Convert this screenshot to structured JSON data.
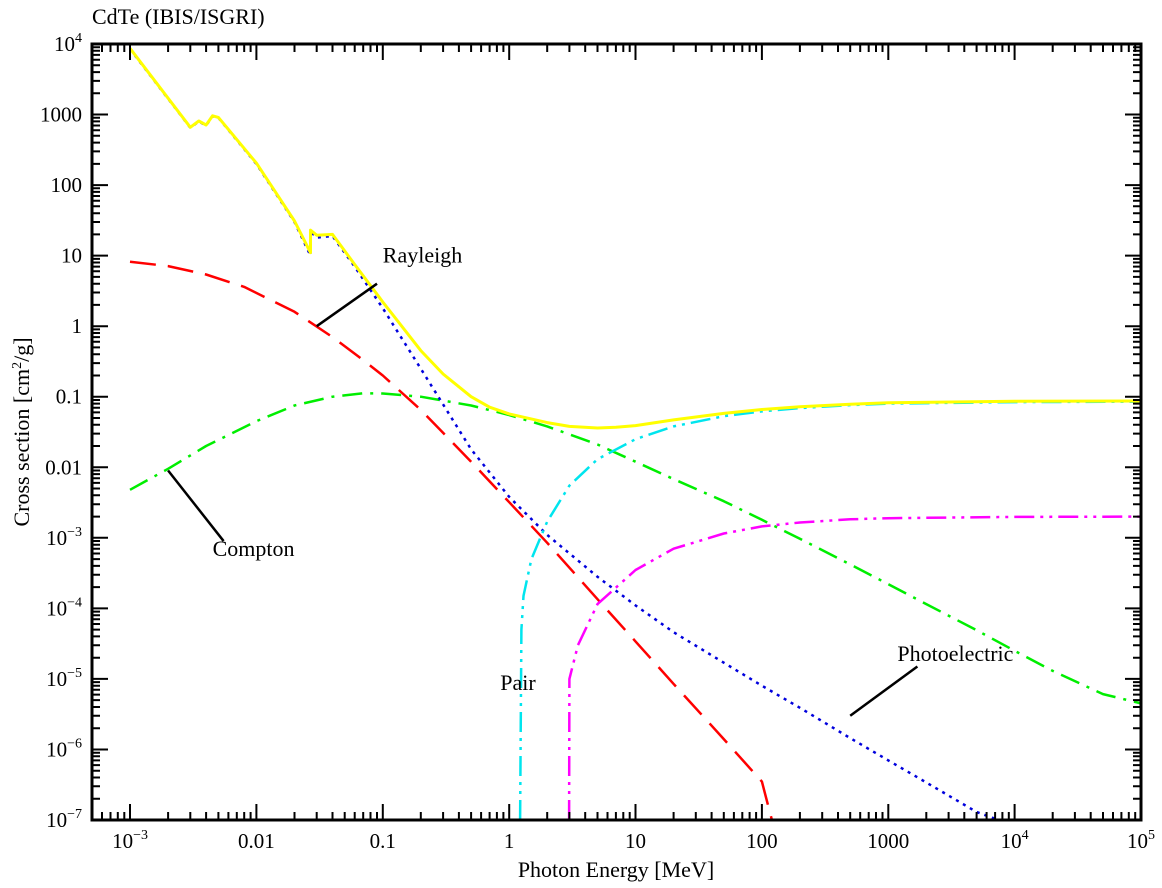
{
  "chart_data": {
    "type": "line",
    "title": "CdTe (IBIS/ISGRI)",
    "xlabel": "Photon Energy [MeV]",
    "ylabel": "Cross section [cm²/g]",
    "xscale": "log",
    "yscale": "log",
    "xlim": [
      0.0005,
      100000
    ],
    "ylim": [
      1e-07,
      10000
    ],
    "grid": false,
    "x_ticks": [
      {
        "value": 0.001,
        "base": "10",
        "exp": "−3"
      },
      {
        "value": 0.01,
        "label": "0.01"
      },
      {
        "value": 0.1,
        "label": "0.1"
      },
      {
        "value": 1,
        "label": "1"
      },
      {
        "value": 10,
        "label": "10"
      },
      {
        "value": 100,
        "label": "100"
      },
      {
        "value": 1000,
        "label": "1000"
      },
      {
        "value": 10000,
        "base": "10",
        "exp": "4"
      },
      {
        "value": 100000,
        "base": "10",
        "exp": "5"
      }
    ],
    "y_ticks": [
      {
        "value": 1e-07,
        "base": "10",
        "exp": "−7"
      },
      {
        "value": 1e-06,
        "base": "10",
        "exp": "−6"
      },
      {
        "value": 1e-05,
        "base": "10",
        "exp": "−5"
      },
      {
        "value": 0.0001,
        "base": "10",
        "exp": "−4"
      },
      {
        "value": 0.001,
        "base": "10",
        "exp": "−3"
      },
      {
        "value": 0.01,
        "label": "0.01"
      },
      {
        "value": 0.1,
        "label": "0.1"
      },
      {
        "value": 1,
        "label": "1"
      },
      {
        "value": 10,
        "label": "10"
      },
      {
        "value": 100,
        "label": "100"
      },
      {
        "value": 1000,
        "label": "1000"
      },
      {
        "value": 10000,
        "base": "10",
        "exp": "4"
      }
    ],
    "series": [
      {
        "id": "rayleigh",
        "color": "#ff0000",
        "dash": "long-dash",
        "points": [
          [
            0.001,
            8.2
          ],
          [
            0.002,
            7.1
          ],
          [
            0.004,
            5.4
          ],
          [
            0.008,
            3.6
          ],
          [
            0.02,
            1.6
          ],
          [
            0.04,
            0.7
          ],
          [
            0.07,
            0.33
          ],
          [
            0.1,
            0.2
          ],
          [
            0.2,
            0.065
          ],
          [
            0.5,
            0.012
          ],
          [
            1,
            0.0032
          ],
          [
            2,
            0.00085
          ],
          [
            5,
            0.000135
          ],
          [
            10,
            3.4e-05
          ],
          [
            20,
            8.5e-06
          ],
          [
            50,
            1.4e-06
          ],
          [
            100,
            3.5e-07
          ],
          [
            120,
            1e-07
          ]
        ]
      },
      {
        "id": "compton",
        "color": "#00ee00",
        "dash": "dash-dot",
        "points": [
          [
            0.001,
            0.0048
          ],
          [
            0.002,
            0.0095
          ],
          [
            0.004,
            0.02
          ],
          [
            0.01,
            0.045
          ],
          [
            0.02,
            0.075
          ],
          [
            0.04,
            0.1
          ],
          [
            0.07,
            0.112
          ],
          [
            0.1,
            0.111
          ],
          [
            0.2,
            0.1
          ],
          [
            0.5,
            0.075
          ],
          [
            1,
            0.055
          ],
          [
            2,
            0.038
          ],
          [
            5,
            0.021
          ],
          [
            10,
            0.012
          ],
          [
            20,
            0.0068
          ],
          [
            50,
            0.0033
          ],
          [
            100,
            0.0018
          ],
          [
            200,
            0.00097
          ],
          [
            500,
            0.00042
          ],
          [
            1000,
            0.00022
          ],
          [
            2000,
            0.000115
          ],
          [
            5000,
            4.9e-05
          ],
          [
            10000,
            2.5e-05
          ],
          [
            20000,
            1.3e-05
          ],
          [
            50000,
            6.1e-06
          ],
          [
            100000,
            4.5e-06
          ]
        ]
      },
      {
        "id": "photoelectric",
        "color": "#0000dd",
        "dash": "dotted",
        "points": [
          [
            0.001,
            8500
          ],
          [
            0.003,
            650
          ],
          [
            0.0035,
            800
          ],
          [
            0.004,
            700
          ],
          [
            0.0045,
            950
          ],
          [
            0.005,
            900
          ],
          [
            0.01,
            200
          ],
          [
            0.02,
            30
          ],
          [
            0.0268,
            10
          ],
          [
            0.0268,
            22
          ],
          [
            0.03,
            18
          ],
          [
            0.04,
            19
          ],
          [
            0.06,
            7
          ],
          [
            0.1,
            1.8
          ],
          [
            0.2,
            0.25
          ],
          [
            0.5,
            0.018
          ],
          [
            1,
            0.0038
          ],
          [
            2,
            0.0011
          ],
          [
            5,
            0.00028
          ],
          [
            10,
            0.00011
          ],
          [
            20,
            4.6e-05
          ],
          [
            50,
            1.7e-05
          ],
          [
            100,
            8e-06
          ],
          [
            200,
            3.9e-06
          ],
          [
            500,
            1.45e-06
          ],
          [
            1000,
            7e-07
          ],
          [
            2000,
            3.4e-07
          ],
          [
            5000,
            1.3e-07
          ],
          [
            7500,
            1e-07
          ]
        ]
      },
      {
        "id": "pair",
        "color": "#00e5ee",
        "dash": "dash-dot-dot",
        "points": [
          [
            1.22,
            1e-07
          ],
          [
            1.25,
            5e-05
          ],
          [
            1.3,
            0.00015
          ],
          [
            1.5,
            0.0005
          ],
          [
            2,
            0.0017
          ],
          [
            3,
            0.0055
          ],
          [
            5,
            0.013
          ],
          [
            10,
            0.025
          ],
          [
            20,
            0.038
          ],
          [
            50,
            0.053
          ],
          [
            100,
            0.062
          ],
          [
            200,
            0.069
          ],
          [
            500,
            0.076
          ],
          [
            1000,
            0.08
          ],
          [
            10000,
            0.084
          ],
          [
            100000,
            0.085
          ]
        ]
      },
      {
        "id": "nuclear-pair",
        "color": "#ff00ff",
        "dash": "dash-dot-dot",
        "points": [
          [
            2.98,
            1e-07
          ],
          [
            3,
            1e-05
          ],
          [
            3.5,
            3e-05
          ],
          [
            5,
            0.000115
          ],
          [
            10,
            0.00035
          ],
          [
            20,
            0.0007
          ],
          [
            50,
            0.00115
          ],
          [
            100,
            0.00145
          ],
          [
            200,
            0.00165
          ],
          [
            500,
            0.00183
          ],
          [
            1000,
            0.0019
          ],
          [
            10000,
            0.00198
          ],
          [
            100000,
            0.002
          ]
        ]
      },
      {
        "id": "total",
        "color": "#ffff00",
        "dash": "solid",
        "points": [
          [
            0.001,
            8700
          ],
          [
            0.003,
            660
          ],
          [
            0.0035,
            810
          ],
          [
            0.004,
            710
          ],
          [
            0.0045,
            960
          ],
          [
            0.005,
            910
          ],
          [
            0.01,
            205
          ],
          [
            0.02,
            31
          ],
          [
            0.0268,
            11
          ],
          [
            0.0268,
            23
          ],
          [
            0.03,
            19.5
          ],
          [
            0.04,
            20
          ],
          [
            0.06,
            7.5
          ],
          [
            0.1,
            2.2
          ],
          [
            0.2,
            0.45
          ],
          [
            0.3,
            0.21
          ],
          [
            0.5,
            0.1
          ],
          [
            0.7,
            0.071
          ],
          [
            1,
            0.057
          ],
          [
            2,
            0.043
          ],
          [
            3,
            0.038
          ],
          [
            5,
            0.036
          ],
          [
            7,
            0.037
          ],
          [
            10,
            0.039
          ],
          [
            20,
            0.047
          ],
          [
            50,
            0.058
          ],
          [
            100,
            0.066
          ],
          [
            200,
            0.072
          ],
          [
            500,
            0.078
          ],
          [
            1000,
            0.082
          ],
          [
            10000,
            0.086
          ],
          [
            100000,
            0.087
          ]
        ]
      }
    ],
    "annotations": [
      {
        "text": "Rayleigh",
        "x": 0.1,
        "y": 8,
        "line": [
          [
            0.03,
            1
          ],
          [
            0.09,
            4
          ]
        ]
      },
      {
        "text": "Compton",
        "x": 0.0045,
        "y": 0.00055,
        "line": [
          [
            0.002,
            0.009
          ],
          [
            0.0055,
            0.0009
          ]
        ]
      },
      {
        "text": "Pair",
        "x": 0.85,
        "y": 7e-06,
        "line": null
      },
      {
        "text": "Photoelectric",
        "x": 1180,
        "y": 1.8e-05,
        "line": [
          [
            500,
            3e-06
          ],
          [
            1700,
            1.5e-05
          ]
        ]
      }
    ]
  }
}
